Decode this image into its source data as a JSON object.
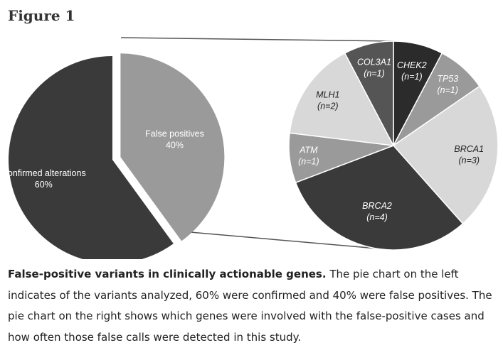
{
  "figure_heading": "Figure 1",
  "caption": {
    "bold": "False-positive variants in clinically actionable genes.",
    "text": " The pie chart on the left indicates of the variants analyzed, 60% were confirmed and 40% were false positives. The pie chart on the right shows which genes were involved with the false-positive cases and how often those false calls were detected in this study."
  },
  "chart_data": [
    {
      "type": "pie",
      "title": "",
      "slices": [
        {
          "label": "Confirmed alterations",
          "value_label": "60%",
          "value": 60,
          "color": "#3a3a3a",
          "text_color": "#ffffff"
        },
        {
          "label": "False positives",
          "value_label": "40%",
          "value": 40,
          "color": "#9a9a9a",
          "text_color": "#ffffff"
        }
      ]
    },
    {
      "type": "pie",
      "title": "",
      "slices": [
        {
          "label": "CHEK2",
          "value_label": "(n=1)",
          "value": 1,
          "color": "#2b2b2b",
          "text_color": "#ffffff"
        },
        {
          "label": "TP53",
          "value_label": "(n=1)",
          "value": 1,
          "color": "#9a9a9a",
          "text_color": "#ffffff"
        },
        {
          "label": "BRCA1",
          "value_label": "(n=3)",
          "value": 3,
          "color": "#d8d8d8",
          "text_color": "#222222"
        },
        {
          "label": "BRCA2",
          "value_label": "(n=4)",
          "value": 4,
          "color": "#3a3a3a",
          "text_color": "#ffffff"
        },
        {
          "label": "ATM",
          "value_label": "(n=1)",
          "value": 1,
          "color": "#9a9a9a",
          "text_color": "#ffffff"
        },
        {
          "label": "MLH1",
          "value_label": "(n=2)",
          "value": 2,
          "color": "#d8d8d8",
          "text_color": "#222222"
        },
        {
          "label": "COL3A1",
          "value_label": "(n=1)",
          "value": 1,
          "color": "#555555",
          "text_color": "#ffffff"
        }
      ]
    }
  ]
}
